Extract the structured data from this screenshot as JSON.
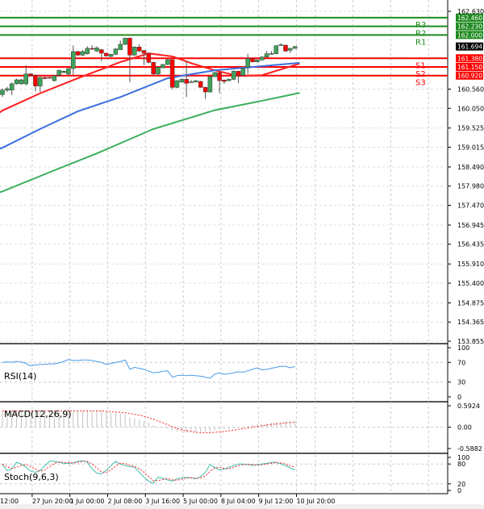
{
  "colors": {
    "bull": "#3fa35a",
    "bear": "#ff0000",
    "resistance": "#1f8a1f",
    "support": "#ff0000",
    "ma_fast": "#ff1a1a",
    "ma_mid": "#3b6fe0",
    "ma_slow": "#3bb05a",
    "rsi": "#4a9be8",
    "macd_hist": "#c0c0c0",
    "macd_signal": "#ff2020",
    "stoch_main": "#3fbfb0",
    "stoch_signal": "#ff2020",
    "price_tag": "#000000"
  },
  "price_axis": {
    "min": 153.855,
    "max": 162.63,
    "ticks": [
      "162.630",
      "160.560",
      "160.050",
      "159.525",
      "159.015",
      "158.490",
      "157.980",
      "157.470",
      "156.945",
      "156.435",
      "155.910",
      "155.400",
      "154.875",
      "154.365",
      "153.855"
    ]
  },
  "current_price": "161.694",
  "levels": [
    {
      "name": "R3",
      "value": "162.460",
      "type": "resistance"
    },
    {
      "name": "R2",
      "value": "162.230",
      "type": "resistance"
    },
    {
      "name": "R1",
      "value": "162.000",
      "type": "resistance"
    },
    {
      "name": "S1",
      "value": "161.380",
      "type": "support"
    },
    {
      "name": "S2",
      "value": "161.150",
      "type": "support"
    },
    {
      "name": "S3",
      "value": "160.920",
      "type": "support"
    }
  ],
  "time_labels": [
    {
      "label": "12:00",
      "index": -1.5
    },
    {
      "label": "27 Jun 20:00",
      "index": 6.3
    },
    {
      "label": "1 Jul 00:00",
      "index": 14.3
    },
    {
      "label": "2 Jul 08:00",
      "index": 22.3
    },
    {
      "label": "3 Jul 16:00",
      "index": 30.3
    },
    {
      "label": "5 Jul 00:00",
      "index": 38.3
    },
    {
      "label": "8 Jul 04:00",
      "index": 46.3
    },
    {
      "label": "9 Jul 12:00",
      "index": 54.3
    },
    {
      "label": "10 Jul 20:00",
      "index": 62.3
    }
  ],
  "candles": [
    [
      160.414,
      160.58,
      160.35,
      160.535
    ],
    [
      160.535,
      160.62,
      160.48,
      160.571
    ],
    [
      160.535,
      160.74,
      160.4,
      160.7
    ],
    [
      160.7,
      160.84,
      160.68,
      160.807
    ],
    [
      160.7,
      160.83,
      160.68,
      160.807
    ],
    [
      160.7,
      161.2,
      160.66,
      160.964
    ],
    [
      160.964,
      160.99,
      160.9,
      160.929
    ],
    [
      160.929,
      160.95,
      160.5,
      160.643
    ],
    [
      160.643,
      160.89,
      160.48,
      160.871
    ],
    [
      160.871,
      160.89,
      160.82,
      160.843
    ],
    [
      160.871,
      160.89,
      160.85,
      160.865
    ],
    [
      160.785,
      160.93,
      160.76,
      160.914
    ],
    [
      160.929,
      161.08,
      160.9,
      161.057
    ],
    [
      161.0,
      161.06,
      160.99,
      161.036
    ],
    [
      160.964,
      161.12,
      160.93,
      161.107
    ],
    [
      161.107,
      161.72,
      160.94,
      161.558
    ],
    [
      161.558,
      161.58,
      161.44,
      161.465
    ],
    [
      161.465,
      161.6,
      161.44,
      161.558
    ],
    [
      161.501,
      161.7,
      161.48,
      161.644
    ],
    [
      161.644,
      161.73,
      161.6,
      161.64
    ],
    [
      161.572,
      161.7,
      161.55,
      161.658
    ],
    [
      161.608,
      161.63,
      161.3,
      161.515
    ],
    [
      161.515,
      161.53,
      161.42,
      161.443
    ],
    [
      161.429,
      161.5,
      161.41,
      161.486
    ],
    [
      161.486,
      161.65,
      161.47,
      161.629
    ],
    [
      161.608,
      161.85,
      161.6,
      161.751
    ],
    [
      161.751,
      161.93,
      161.73,
      161.915
    ],
    [
      161.915,
      161.93,
      160.75,
      161.465
    ],
    [
      161.465,
      161.7,
      161.45,
      161.679
    ],
    [
      161.679,
      161.75,
      161.55,
      161.572
    ],
    [
      161.586,
      161.6,
      161.2,
      161.515
    ],
    [
      161.515,
      161.53,
      161.25,
      161.272
    ],
    [
      161.272,
      161.29,
      160.93,
      160.964
    ],
    [
      160.964,
      161.16,
      160.93,
      161.143
    ],
    [
      161.129,
      161.23,
      161.11,
      161.215
    ],
    [
      161.215,
      161.36,
      161.2,
      161.343
    ],
    [
      161.343,
      161.36,
      160.55,
      160.607
    ],
    [
      160.607,
      160.8,
      160.58,
      160.785
    ],
    [
      160.75,
      160.84,
      160.73,
      160.821
    ],
    [
      160.821,
      161.3,
      160.35,
      160.714
    ],
    [
      160.75,
      160.8,
      160.73,
      160.755
    ],
    [
      160.75,
      160.8,
      160.74,
      160.785
    ],
    [
      160.764,
      160.78,
      160.59,
      160.607
    ],
    [
      160.607,
      160.62,
      160.3,
      160.485
    ],
    [
      160.485,
      160.91,
      160.47,
      160.893
    ],
    [
      160.893,
      161.02,
      160.88,
      161.0
    ],
    [
      161.0,
      161.02,
      160.45,
      160.785
    ],
    [
      160.8,
      160.82,
      160.7,
      160.764
    ],
    [
      160.785,
      160.84,
      160.77,
      160.821
    ],
    [
      160.821,
      161.06,
      160.8,
      161.036
    ],
    [
      161.036,
      161.05,
      160.72,
      160.929
    ],
    [
      160.929,
      161.12,
      160.91,
      161.107
    ],
    [
      161.143,
      161.5,
      160.96,
      161.372
    ],
    [
      161.372,
      161.39,
      161.27,
      161.286
    ],
    [
      161.286,
      161.35,
      161.27,
      161.336
    ],
    [
      161.336,
      161.43,
      161.32,
      161.415
    ],
    [
      161.415,
      161.58,
      161.4,
      161.501
    ],
    [
      161.501,
      161.57,
      161.48,
      161.505
    ],
    [
      161.501,
      161.73,
      161.49,
      161.715
    ],
    [
      161.736,
      161.78,
      161.72,
      161.74
    ],
    [
      161.729,
      161.74,
      161.55,
      161.572
    ],
    [
      161.593,
      161.66,
      161.52,
      161.644
    ],
    [
      161.644,
      161.7,
      161.63,
      161.694
    ]
  ],
  "moving_averages": [
    {
      "color_key": "ma_fast",
      "points": [
        [
          -1,
          159.9
        ],
        [
          0,
          159.99
        ],
        [
          8,
          160.45
        ],
        [
          16,
          160.85
        ],
        [
          25,
          161.28
        ],
        [
          31,
          161.51
        ],
        [
          36,
          161.43
        ],
        [
          40,
          161.25
        ],
        [
          45,
          161.06
        ],
        [
          50,
          160.91
        ],
        [
          55,
          160.93
        ],
        [
          63,
          161.24
        ]
      ]
    },
    {
      "color_key": "ma_mid",
      "points": [
        [
          -1,
          158.95
        ],
        [
          0,
          159.0
        ],
        [
          8,
          159.5
        ],
        [
          16,
          159.97
        ],
        [
          25,
          160.35
        ],
        [
          35,
          160.85
        ],
        [
          45,
          161.06
        ],
        [
          55,
          161.17
        ],
        [
          63,
          161.26
        ]
      ]
    },
    {
      "color_key": "ma_slow",
      "points": [
        [
          -1,
          157.8
        ],
        [
          0,
          157.84
        ],
        [
          10,
          158.35
        ],
        [
          20,
          158.85
        ],
        [
          32,
          159.5
        ],
        [
          45,
          160.0
        ],
        [
          55,
          160.25
        ],
        [
          63,
          160.46
        ]
      ]
    }
  ],
  "rsi": {
    "label": "RSI(14)",
    "ticks": [
      "100",
      "70",
      "30",
      "0"
    ],
    "values": [
      70,
      71,
      70,
      72,
      71,
      68,
      63,
      65,
      66,
      66,
      67,
      67,
      69,
      72,
      76,
      74,
      74,
      75,
      75,
      74,
      72,
      70,
      66,
      68,
      70,
      72,
      75,
      56,
      60,
      58,
      56,
      52,
      49,
      50,
      52,
      53,
      40,
      43,
      44,
      43,
      44,
      43,
      42,
      40,
      38,
      46,
      49,
      46,
      47,
      49,
      51,
      50,
      53,
      56,
      59,
      55,
      56,
      58,
      60,
      62,
      62,
      59,
      62
    ]
  },
  "macd": {
    "label": "MACD(12,26,9)",
    "ticks": [
      "0.5924",
      "0.00",
      "-0.5882"
    ],
    "range": [
      -0.5882,
      0.5924
    ],
    "hist": [
      0.45,
      0.45,
      0.45,
      0.45,
      0.45,
      0.45,
      0.45,
      0.45,
      0.45,
      0.45,
      0.45,
      0.45,
      0.45,
      0.45,
      0.45,
      0.45,
      0.45,
      0.45,
      0.45,
      0.45,
      0.45,
      0.45,
      0.42,
      0.4,
      0.4,
      0.38,
      0.36,
      0.26,
      0.24,
      0.2,
      0.16,
      0.12,
      0.06,
      0.02,
      -0.02,
      -0.04,
      -0.1,
      -0.12,
      -0.14,
      -0.15,
      -0.14,
      -0.14,
      -0.13,
      -0.12,
      -0.12,
      -0.08,
      -0.06,
      -0.05,
      -0.04,
      -0.02,
      0.0,
      0.02,
      0.04,
      0.06,
      0.08,
      0.09,
      0.1,
      0.12,
      0.14,
      0.15,
      0.16,
      0.17,
      0.18
    ],
    "signal": [
      0.45,
      0.45,
      0.45,
      0.45,
      0.45,
      0.45,
      0.45,
      0.45,
      0.45,
      0.45,
      0.45,
      0.45,
      0.45,
      0.45,
      0.45,
      0.45,
      0.45,
      0.45,
      0.45,
      0.45,
      0.45,
      0.45,
      0.44,
      0.43,
      0.42,
      0.41,
      0.4,
      0.38,
      0.36,
      0.33,
      0.3,
      0.26,
      0.22,
      0.17,
      0.12,
      0.07,
      0.02,
      -0.03,
      -0.07,
      -0.1,
      -0.12,
      -0.14,
      -0.15,
      -0.15,
      -0.15,
      -0.14,
      -0.13,
      -0.12,
      -0.1,
      -0.08,
      -0.06,
      -0.04,
      -0.02,
      0.0,
      0.02,
      0.04,
      0.06,
      0.08,
      0.09,
      0.1,
      0.12,
      0.13,
      0.14
    ]
  },
  "stoch": {
    "label": "Stoch(9,6,3)",
    "ticks": [
      "100",
      "80",
      "20",
      "0"
    ],
    "main": [
      78,
      60,
      65,
      85,
      80,
      70,
      58,
      55,
      60,
      75,
      88,
      88,
      85,
      82,
      82,
      83,
      88,
      90,
      85,
      65,
      52,
      50,
      60,
      75,
      88,
      80,
      75,
      72,
      70,
      55,
      40,
      28,
      22,
      40,
      37,
      32,
      28,
      35,
      38,
      40,
      38,
      35,
      42,
      55,
      78,
      70,
      62,
      65,
      70,
      75,
      80,
      80,
      78,
      76,
      78,
      80,
      82,
      85,
      85,
      80,
      75,
      68,
      62
    ],
    "signal": [
      80,
      72,
      66,
      70,
      76,
      78,
      72,
      64,
      58,
      62,
      72,
      82,
      86,
      85,
      84,
      83,
      85,
      88,
      88,
      80,
      68,
      56,
      54,
      62,
      74,
      82,
      81,
      76,
      73,
      66,
      55,
      42,
      30,
      30,
      33,
      36,
      32,
      31,
      34,
      37,
      38,
      37,
      38,
      44,
      58,
      68,
      70,
      66,
      66,
      70,
      75,
      78,
      79,
      78,
      77,
      78,
      80,
      82,
      84,
      83,
      80,
      74,
      70
    ]
  }
}
